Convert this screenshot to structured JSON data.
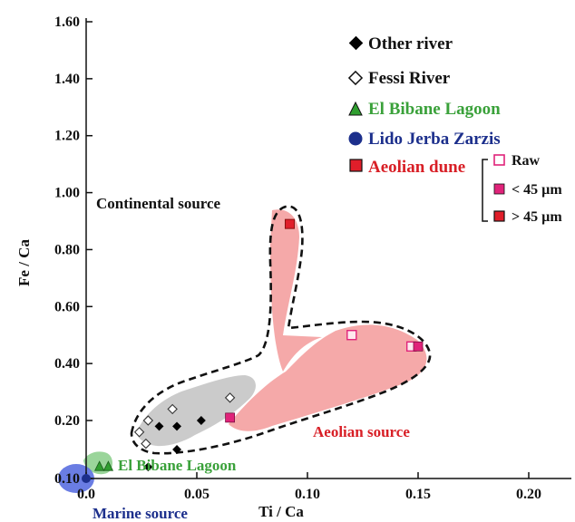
{
  "chart_data": {
    "type": "scatter",
    "title": "",
    "xlabel": "Ti / Ca",
    "ylabel": "Fe / Ca",
    "xlim": [
      0.0,
      0.216
    ],
    "ylim": [
      0.1,
      1.6
    ],
    "x_ticks": [
      {
        "value": 0.0,
        "label": "0.0"
      },
      {
        "value": 0.05,
        "label": "0.05"
      },
      {
        "value": 0.1,
        "label": "0.10"
      },
      {
        "value": 0.15,
        "label": "0.15"
      },
      {
        "value": 0.2,
        "label": "0.20"
      }
    ],
    "y_ticks": [
      {
        "value": 0.1,
        "label": "0.10"
      },
      {
        "value": 0.2,
        "label": "0.20"
      },
      {
        "value": 0.4,
        "label": "0.40"
      },
      {
        "value": 0.6,
        "label": "0.60"
      },
      {
        "value": 0.8,
        "label": "0.80"
      },
      {
        "value": 1.0,
        "label": "1.00"
      },
      {
        "value": 1.2,
        "label": "1.20"
      },
      {
        "value": 1.4,
        "label": "1.40"
      },
      {
        "value": 1.6,
        "label": "1.60"
      }
    ],
    "grid": false,
    "legend_position": "top-right",
    "series": [
      {
        "name": "Other river",
        "marker": "diamond-filled",
        "color": "#000000",
        "points": [
          [
            0.028,
            0.12
          ],
          [
            0.033,
            0.19
          ],
          [
            0.041,
            0.19
          ],
          [
            0.041,
            0.15
          ],
          [
            0.052,
            0.2
          ]
        ]
      },
      {
        "name": "Fessi River",
        "marker": "diamond-open",
        "color": "#333333",
        "points": [
          [
            0.024,
            0.18
          ],
          [
            0.027,
            0.16
          ],
          [
            0.028,
            0.2
          ],
          [
            0.039,
            0.24
          ],
          [
            0.065,
            0.28
          ]
        ]
      },
      {
        "name": "El Bibane Lagoon",
        "marker": "triangle",
        "color": "#2f9e2f",
        "points": [
          [
            0.006,
            0.12
          ],
          [
            0.01,
            0.12
          ]
        ]
      },
      {
        "name": "Lido Jerba Zarzis",
        "marker": "circle",
        "color": "#1c2f8c",
        "points": [
          [
            0.0,
            0.1
          ]
        ]
      },
      {
        "name": "Aeolian dune",
        "marker": "square",
        "color": "#e01e2a",
        "subtypes": [
          "Raw",
          "< 45 µm",
          "> 45 µm"
        ],
        "points": [
          {
            "x": 0.092,
            "y": 0.89,
            "subtype": "> 45 µm"
          },
          {
            "x": 0.12,
            "y": 0.5,
            "subtype": "Raw"
          },
          {
            "x": 0.147,
            "y": 0.46,
            "subtype": "Raw"
          },
          {
            "x": 0.15,
            "y": 0.46,
            "subtype": "< 45 µm"
          },
          {
            "x": 0.065,
            "y": 0.21,
            "subtype": "< 45 µm"
          }
        ]
      }
    ],
    "annotations": [
      {
        "text": "Continental source",
        "color": "#111111"
      },
      {
        "text": "Aeolian source",
        "color": "#d81f26"
      },
      {
        "text": "El Bibane Lagoon",
        "color": "#3aa13a"
      },
      {
        "text": "Marine source",
        "color": "#1c2f8c"
      }
    ],
    "legend_subtitles": [
      "Raw",
      "< 45 µm",
      "> 45 µm"
    ],
    "colors": {
      "aeolian_fill": "#f4a0a0",
      "river_fill": "#c8c8c8",
      "lagoon_fill": "#8fd08f",
      "marine_fill": "#5a6fe0",
      "raw_edge": "#e0237a",
      "fine_fill": "#e0237a",
      "coarse_fill": "#e01e2a"
    }
  }
}
